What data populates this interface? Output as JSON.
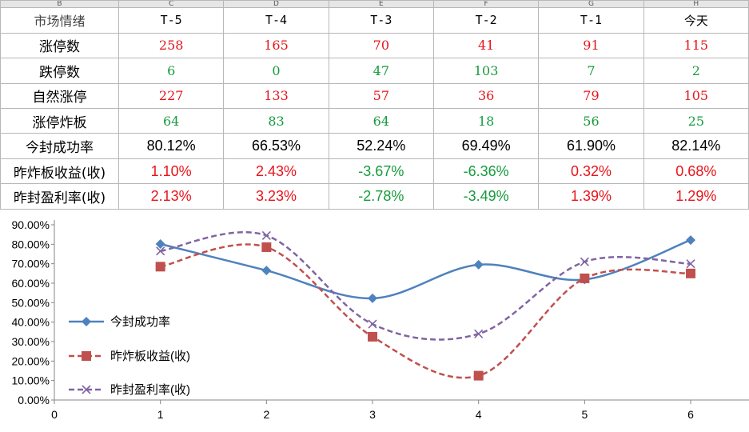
{
  "sheet": {
    "column_headers": [
      "B",
      "C",
      "D",
      "E",
      "F",
      "G",
      "H"
    ],
    "period_row": {
      "label": "市场情绪",
      "values": [
        "T-5",
        "T-4",
        "T-3",
        "T-2",
        "T-1",
        "今天"
      ]
    },
    "rows": [
      {
        "label": "涨停数",
        "values": [
          "258",
          "165",
          "70",
          "41",
          "91",
          "115"
        ],
        "colors": [
          "red",
          "red",
          "red",
          "red",
          "red",
          "red"
        ],
        "kind": "num"
      },
      {
        "label": "跌停数",
        "values": [
          "6",
          "0",
          "47",
          "103",
          "7",
          "2"
        ],
        "colors": [
          "green",
          "green",
          "green",
          "green",
          "green",
          "green"
        ],
        "kind": "num"
      },
      {
        "label": "自然涨停",
        "values": [
          "227",
          "133",
          "57",
          "36",
          "79",
          "105"
        ],
        "colors": [
          "red",
          "red",
          "red",
          "red",
          "red",
          "red"
        ],
        "kind": "num"
      },
      {
        "label": "涨停炸板",
        "values": [
          "64",
          "83",
          "64",
          "18",
          "56",
          "25"
        ],
        "colors": [
          "green",
          "green",
          "green",
          "green",
          "green",
          "green"
        ],
        "kind": "num"
      },
      {
        "label": "今封成功率",
        "values": [
          "80.12%",
          "66.53%",
          "52.24%",
          "69.49%",
          "61.90%",
          "82.14%"
        ],
        "colors": [
          "black",
          "black",
          "black",
          "black",
          "black",
          "black"
        ],
        "kind": "pct"
      },
      {
        "label": "昨炸板收益(收)",
        "values": [
          "1.10%",
          "2.43%",
          "-3.67%",
          "-6.36%",
          "0.32%",
          "0.68%"
        ],
        "colors": [
          "red",
          "red",
          "green",
          "green",
          "red",
          "red"
        ],
        "kind": "pct"
      },
      {
        "label": "昨封盈利率(收)",
        "values": [
          "2.13%",
          "3.23%",
          "-2.78%",
          "-3.49%",
          "1.39%",
          "1.29%"
        ],
        "colors": [
          "red",
          "red",
          "green",
          "green",
          "red",
          "red"
        ],
        "kind": "pct"
      }
    ]
  },
  "chart_data": {
    "type": "line",
    "smoothed": true,
    "title": "",
    "xlabel": "",
    "ylabel": "",
    "xlim": [
      0,
      6.55
    ],
    "ylim": [
      0,
      90
    ],
    "x_ticks": [
      0,
      1,
      2,
      3,
      4,
      5,
      6
    ],
    "y_ticks": [
      0,
      10,
      20,
      30,
      40,
      50,
      60,
      70,
      80,
      90
    ],
    "y_tick_labels": [
      "0.00%",
      "10.00%",
      "20.00%",
      "30.00%",
      "40.00%",
      "50.00%",
      "60.00%",
      "70.00%",
      "80.00%",
      "90.00%"
    ],
    "grid": false,
    "legend_position": "left",
    "series": [
      {
        "name": "今封成功率",
        "x": [
          1,
          2,
          3,
          4,
          5,
          6
        ],
        "y": [
          80.12,
          66.53,
          52.24,
          69.49,
          61.9,
          82.14
        ],
        "color": "#4f81bd",
        "marker": "diamond",
        "dash": "solid"
      },
      {
        "name": "昨炸板收益(收)",
        "x": [
          1,
          2,
          3,
          4,
          5,
          6
        ],
        "y": [
          68.5,
          78.5,
          32.5,
          12.5,
          62.5,
          65.0
        ],
        "color": "#c0504d",
        "marker": "square",
        "dash": "dashed"
      },
      {
        "name": "昨封盈利率(收)",
        "x": [
          1,
          2,
          3,
          4,
          5,
          6
        ],
        "y": [
          76.5,
          84.5,
          39.0,
          34.0,
          71.0,
          70.0
        ],
        "color": "#8064a2",
        "marker": "x",
        "dash": "dashed"
      }
    ]
  }
}
